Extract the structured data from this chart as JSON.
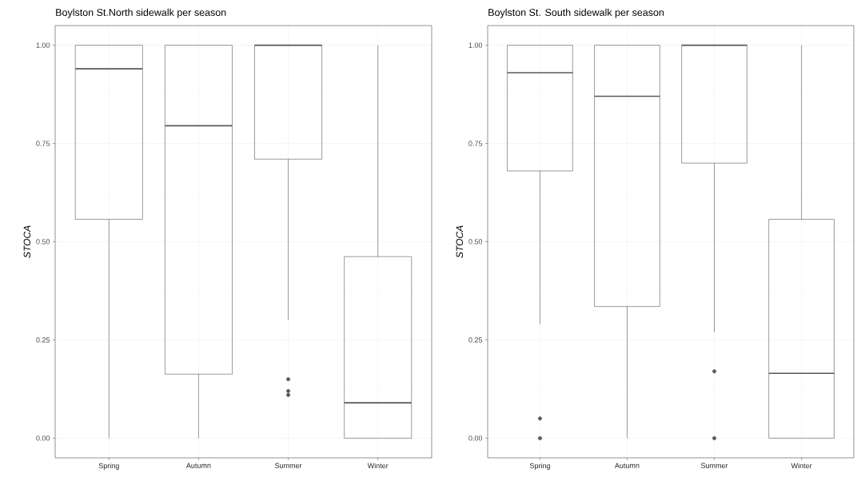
{
  "chart_data": [
    {
      "type": "box",
      "title": "Boylston St.North sidewalk per season",
      "ylabel": "STOCA",
      "categories": [
        "Spring",
        "Autumn",
        "Summer",
        "Winter"
      ],
      "series": [
        {
          "color": "#595959",
          "boxes": [
            {
              "low": 0,
              "q1": 0.557,
              "median": 0.94,
              "q3": 1,
              "high": 1
            },
            {
              "low": 0,
              "q1": 0.163,
              "median": 0.795,
              "q3": 1,
              "high": 1
            },
            {
              "low": 0.3,
              "q1": 0.71,
              "median": 1,
              "q3": 1,
              "high": 1,
              "outliers": [
                0.15,
                0.12,
                0.11
              ]
            },
            {
              "low": 0,
              "q1": 0,
              "median": 0.09,
              "q3": 0.462,
              "high": 1
            }
          ]
        }
      ],
      "ylim": [
        -0.05,
        1.05
      ],
      "yticks": [
        {
          "value": 0,
          "label": "0.00"
        },
        {
          "value": 0.25,
          "label": "0.25"
        },
        {
          "value": 0.5,
          "label": "0.50"
        },
        {
          "value": 0.75,
          "label": "0.75"
        },
        {
          "value": 1,
          "label": "1.00"
        }
      ],
      "grid": true
    },
    {
      "type": "box",
      "title": "Boylston St. South sidewalk per season",
      "ylabel": "STOCA",
      "categories": [
        "Spring",
        "Autumn",
        "Summer",
        "Winter"
      ],
      "series": [
        {
          "color": "#595959",
          "boxes": [
            {
              "low": 0.29,
              "q1": 0.68,
              "median": 0.93,
              "q3": 1,
              "high": 1,
              "outliers": [
                0.05,
                0
              ]
            },
            {
              "low": 0,
              "q1": 0.335,
              "median": 0.87,
              "q3": 1,
              "high": 1
            },
            {
              "low": 0.27,
              "q1": 0.7,
              "median": 1,
              "q3": 1,
              "high": 1,
              "outliers": [
                0.17,
                0
              ]
            },
            {
              "low": 0,
              "q1": 0,
              "median": 0.165,
              "q3": 0.557,
              "high": 1
            }
          ]
        }
      ],
      "ylim": [
        -0.05,
        1.05
      ],
      "yticks": [
        {
          "value": 0,
          "label": "0.00"
        },
        {
          "value": 0.25,
          "label": "0.25"
        },
        {
          "value": 0.5,
          "label": "0.50"
        },
        {
          "value": 0.75,
          "label": "0.75"
        },
        {
          "value": 1,
          "label": "1.00"
        }
      ],
      "grid": true
    }
  ]
}
